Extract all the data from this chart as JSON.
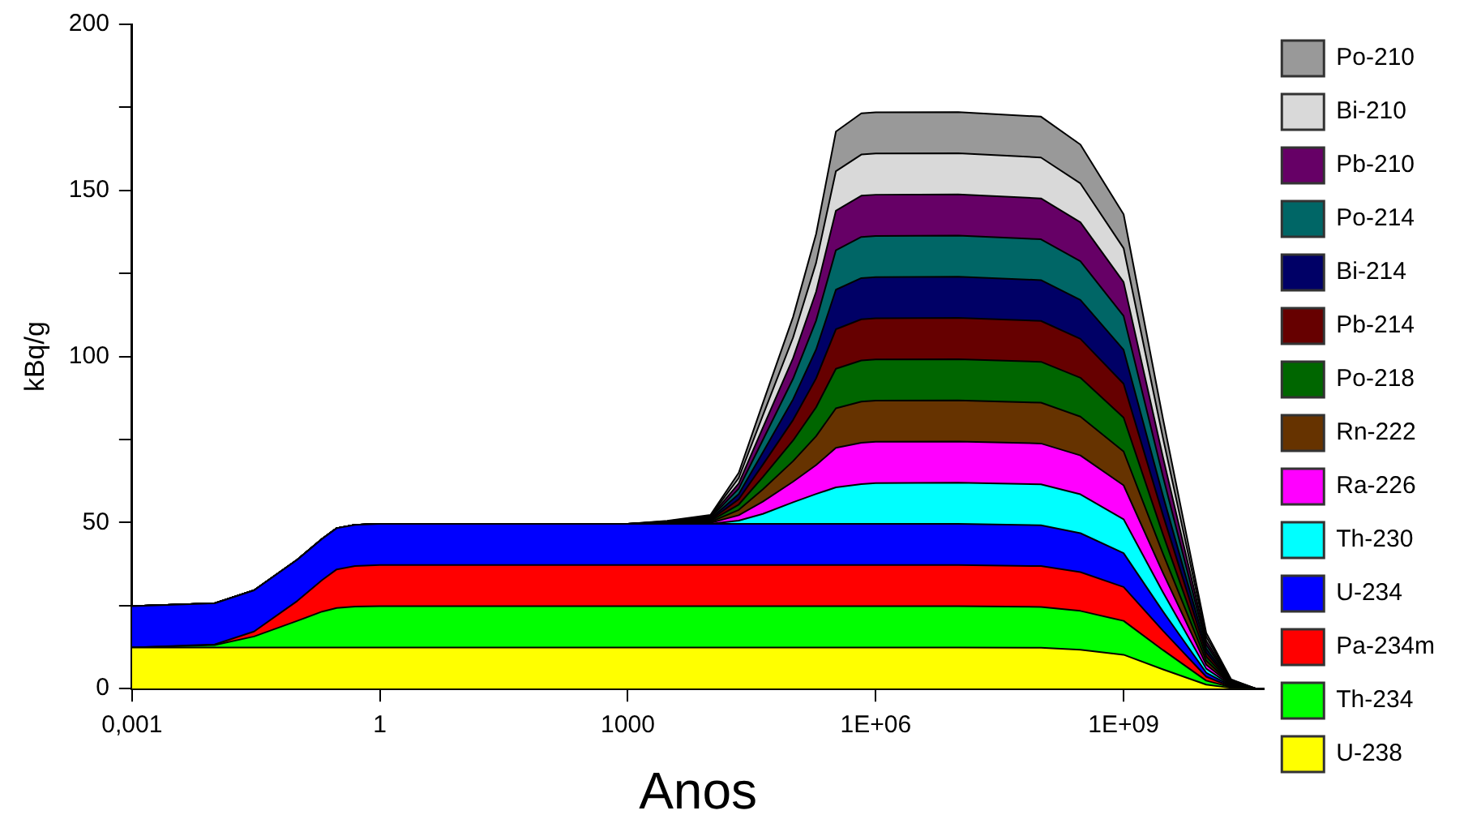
{
  "chart_data": {
    "type": "area",
    "stacked": true,
    "xlabel": "Anos",
    "ylabel": "kBq/g",
    "log": "x",
    "grid": false,
    "legend": "right",
    "x": [
      0.001,
      0.01,
      0.03,
      0.1,
      0.2,
      0.3,
      0.5,
      1,
      1000,
      3000,
      10000,
      22000,
      43000,
      100000,
      190000,
      330000,
      670000,
      1000000,
      10000000,
      100000000,
      300000000,
      1000000000,
      3000000000,
      10000000000,
      20000000000,
      40000000000
    ],
    "xlim": [
      0.001,
      50000000000
    ],
    "xticks": [
      {
        "value": 0.001,
        "label": "0,001"
      },
      1,
      1000,
      {
        "value": 1000000,
        "label": "1E+06"
      },
      {
        "value": 1000000000,
        "label": "1E+09"
      }
    ],
    "ylim": [
      0,
      200
    ],
    "yticks": [
      0,
      {
        "value": 25,
        "label": null
      },
      50,
      {
        "value": 75,
        "label": null
      },
      100,
      {
        "value": 125,
        "label": null
      },
      150,
      {
        "value": 175,
        "label": null
      },
      200
    ],
    "series": [
      {
        "name": "U-238",
        "color": "#ffff00",
        "values": [
          12.4,
          12.4,
          12.4,
          12.4,
          12.4,
          12.4,
          12.4,
          12.4,
          12.4,
          12.4,
          12.4,
          12.4,
          12.4,
          12.4,
          12.4,
          12.4,
          12.4,
          12.4,
          12.4,
          12.3,
          11.7,
          10.2,
          5.8,
          1.2,
          0.2,
          0
        ]
      },
      {
        "name": "Th-234",
        "color": "#00ff00",
        "values": [
          0,
          0.7,
          3.3,
          8,
          10.8,
          11.9,
          12.3,
          12.4,
          12.4,
          12.4,
          12.4,
          12.4,
          12.4,
          12.4,
          12.4,
          12.4,
          12.4,
          12.4,
          12.4,
          12.3,
          11.7,
          10.2,
          5.8,
          1.2,
          0.2,
          0
        ]
      },
      {
        "name": "Pa-234m",
        "color": "#ff0000",
        "values": [
          0,
          0.2,
          1.5,
          6,
          9.5,
          11.6,
          12.2,
          12.4,
          12.4,
          12.4,
          12.4,
          12.4,
          12.4,
          12.4,
          12.4,
          12.4,
          12.4,
          12.4,
          12.4,
          12.3,
          11.7,
          10.2,
          5.8,
          1.2,
          0.2,
          0
        ]
      },
      {
        "name": "U-234",
        "color": "#0000ff",
        "values": [
          12.4,
          12.4,
          12.4,
          12.4,
          12.4,
          12.4,
          12.4,
          12.4,
          12.4,
          12.4,
          12.4,
          12.4,
          12.4,
          12.4,
          12.4,
          12.4,
          12.4,
          12.4,
          12.4,
          12.3,
          11.7,
          10.2,
          5.8,
          1.2,
          0.2,
          0
        ]
      },
      {
        "name": "Th-230",
        "color": "#00ffff",
        "values": [
          0,
          0,
          0,
          0,
          0,
          0,
          0,
          0,
          0,
          0,
          0,
          1,
          3,
          6.5,
          9,
          11,
          12,
          12.3,
          12.4,
          12.3,
          11.7,
          10.2,
          5.8,
          1.2,
          0.2,
          0
        ]
      },
      {
        "name": "Ra-226",
        "color": "#ff00ff",
        "values": [
          0,
          0,
          0,
          0,
          0,
          0,
          0,
          0,
          0,
          0.1,
          0.3,
          1.6,
          3.7,
          6.2,
          8.7,
          11.9,
          12.4,
          12.4,
          12.4,
          12.3,
          11.7,
          10.2,
          5.8,
          1.2,
          0.2,
          0
        ]
      },
      {
        "name": "Rn-222",
        "color": "#663300",
        "values": [
          0,
          0,
          0,
          0,
          0,
          0,
          0,
          0,
          0,
          0.1,
          0.3,
          1.6,
          3.7,
          6.2,
          8.7,
          11.9,
          12.4,
          12.4,
          12.4,
          12.3,
          11.7,
          10.2,
          5.8,
          1.2,
          0.2,
          0
        ]
      },
      {
        "name": "Po-218",
        "color": "#006600",
        "values": [
          0,
          0,
          0,
          0,
          0,
          0,
          0,
          0,
          0,
          0.1,
          0.3,
          1.6,
          3.7,
          6.2,
          8.7,
          11.9,
          12.4,
          12.4,
          12.4,
          12.3,
          11.7,
          10.2,
          5.8,
          1.2,
          0.2,
          0
        ]
      },
      {
        "name": "Pb-214",
        "color": "#660000",
        "values": [
          0,
          0,
          0,
          0,
          0,
          0,
          0,
          0,
          0,
          0.1,
          0.3,
          1.6,
          3.7,
          6.2,
          8.7,
          11.9,
          12.4,
          12.4,
          12.4,
          12.3,
          11.7,
          10.2,
          5.8,
          1.2,
          0.2,
          0
        ]
      },
      {
        "name": "Bi-214",
        "color": "#000066",
        "values": [
          0,
          0,
          0,
          0,
          0,
          0,
          0,
          0,
          0,
          0.1,
          0.3,
          1.6,
          3.7,
          6.2,
          8.7,
          11.9,
          12.4,
          12.4,
          12.4,
          12.3,
          11.7,
          10.2,
          5.8,
          1.2,
          0.2,
          0
        ]
      },
      {
        "name": "Po-214",
        "color": "#006666",
        "values": [
          0,
          0,
          0,
          0,
          0,
          0,
          0,
          0,
          0,
          0.1,
          0.3,
          1.6,
          3.7,
          6.2,
          8.7,
          11.9,
          12.4,
          12.4,
          12.4,
          12.3,
          11.7,
          10.2,
          5.8,
          1.2,
          0.2,
          0
        ]
      },
      {
        "name": "Pb-210",
        "color": "#660066",
        "values": [
          0,
          0,
          0,
          0,
          0,
          0,
          0,
          0,
          0,
          0.1,
          0.3,
          1.6,
          3.7,
          6.2,
          8.7,
          11.9,
          12.4,
          12.4,
          12.4,
          12.3,
          11.7,
          10.2,
          5.8,
          1.2,
          0.2,
          0
        ]
      },
      {
        "name": "Bi-210",
        "color": "#d9d9d9",
        "values": [
          0,
          0,
          0,
          0,
          0,
          0,
          0,
          0,
          0,
          0.1,
          0.3,
          1.6,
          3.7,
          6.2,
          8.7,
          11.9,
          12.4,
          12.4,
          12.4,
          12.3,
          11.7,
          10.2,
          5.8,
          1.2,
          0.2,
          0
        ]
      },
      {
        "name": "Po-210",
        "color": "#999999",
        "values": [
          0,
          0,
          0,
          0,
          0,
          0,
          0,
          0,
          0,
          0.1,
          0.3,
          1.6,
          3.7,
          6.2,
          8.7,
          11.9,
          12.4,
          12.4,
          12.4,
          12.3,
          11.7,
          10.2,
          5.8,
          1.2,
          0.2,
          0
        ]
      }
    ]
  }
}
